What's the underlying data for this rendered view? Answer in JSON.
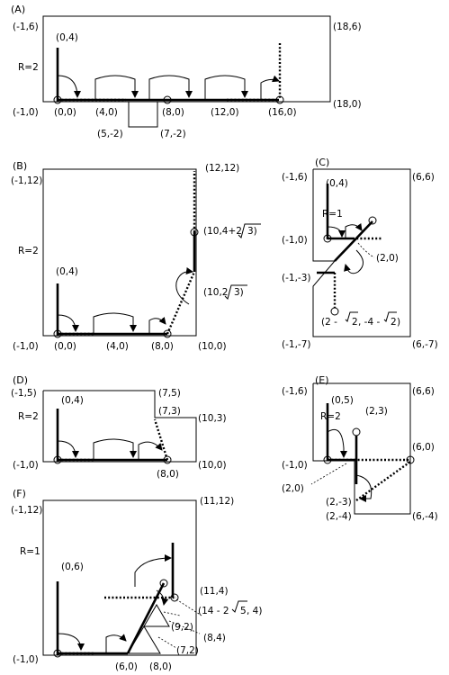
{
  "panels": {
    "A": {
      "label": "(A)",
      "radius": "R=2",
      "labels": [
        "(-1,6)",
        "(18,6)",
        "(0,4)",
        "(-1,0)",
        "(0,0)",
        "(4,0)",
        "(8,0)",
        "(12,0)",
        "(16,0)",
        "(18,0)",
        "(5,-2)",
        "(7,-2)"
      ]
    },
    "B": {
      "label": "(B)",
      "radius": "R=2",
      "labels": [
        "(-1,12)",
        "(12,12)",
        "(10,4+2",
        "3)",
        "(0,4)",
        "(10,2",
        "3)",
        "(-1,0)",
        "(0,0)",
        "(4,0)",
        "(8,0)",
        "(10,0)"
      ]
    },
    "C": {
      "label": "(C)",
      "radius": "R=1",
      "labels": [
        "(-1,6)",
        "(6,6)",
        "(0,4)",
        "(-1,0)",
        "(2,0)",
        "(-1,-3)",
        "(2 - ",
        "2",
        ", -4 - ",
        "2",
        ")",
        "(-1,-7)",
        "(6,-7)"
      ]
    },
    "D": {
      "label": "(D)",
      "radius": "R=2",
      "labels": [
        "(-1,5)",
        "(7,5)",
        "(7,3)",
        "(10,3)",
        "(0,4)",
        "(-1,0)",
        "(8,0)",
        "(10,0)"
      ]
    },
    "E": {
      "label": "(E)",
      "radius": "R=2",
      "labels": [
        "(-1,6)",
        "(6,6)",
        "(0,5)",
        "(2,3)",
        "(6,0)",
        "(-1,0)",
        "(2,0)",
        "(2,-3)",
        "(2,-4)",
        "(6,-4)"
      ]
    },
    "F": {
      "label": "(F)",
      "radius": "R=1",
      "labels": [
        "(-1,12)",
        "(11,12)",
        "(0,6)",
        "(11,4)",
        "(14 - 2",
        "5",
        ", 4)",
        "(9,2)",
        "(8,4)",
        "(7,2)",
        "(-1,0)",
        "(6,0)",
        "(8,0)"
      ]
    }
  }
}
